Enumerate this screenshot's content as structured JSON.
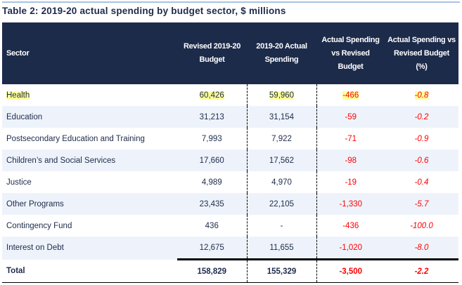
{
  "title": "Table 2: 2019-20 actual spending by budget sector, $ millions",
  "headers": [
    "Sector",
    "Revised 2019-20 Budget",
    "2019-20 Actual Spending",
    "Actual Spending vs Revised Budget",
    "Actual Spending vs Revised Budget (%)"
  ],
  "rows": [
    {
      "sector": "Health",
      "budget": "60,426",
      "actual": "59,960",
      "diff": "-466",
      "pct": "-0.8",
      "highlighted": true
    },
    {
      "sector": "Education",
      "budget": "31,213",
      "actual": "31,154",
      "diff": "-59",
      "pct": "-0.2"
    },
    {
      "sector": "Postsecondary Education and Training",
      "budget": "7,993",
      "actual": "7,922",
      "diff": "-71",
      "pct": "-0.9"
    },
    {
      "sector": "Children’s and Social Services",
      "budget": "17,660",
      "actual": "17,562",
      "diff": "-98",
      "pct": "-0.6"
    },
    {
      "sector": "Justice",
      "budget": "4,989",
      "actual": "4,970",
      "diff": "-19",
      "pct": "-0.4"
    },
    {
      "sector": "Other Programs",
      "budget": "23,435",
      "actual": "22,105",
      "diff": "-1,330",
      "pct": "-5.7"
    },
    {
      "sector": "Contingency Fund",
      "budget": "436",
      "actual": "-",
      "diff": "-436",
      "pct": "-100.0"
    },
    {
      "sector": "Interest on Debt",
      "budget": "12,675",
      "actual": "11,655",
      "diff": "-1,020",
      "pct": "-8.0"
    }
  ],
  "total": {
    "sector": "Total",
    "budget": "158,829",
    "actual": "155,329",
    "diff": "-3,500",
    "pct": "-2.2"
  },
  "colors": {
    "header_bg": "#1d2b4a",
    "negative": "#ff0000",
    "highlight": "#ffff99",
    "alt_row": "#eef3fb"
  }
}
